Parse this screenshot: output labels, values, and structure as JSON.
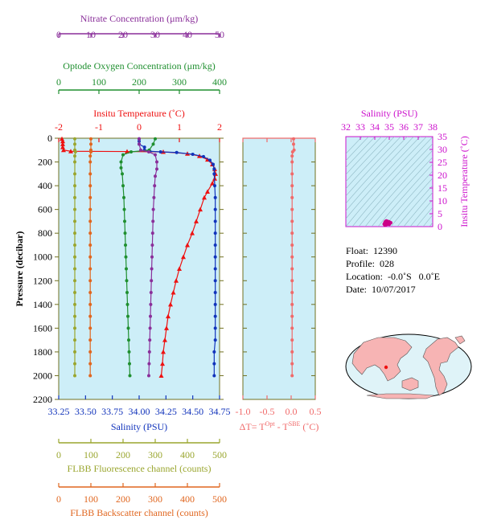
{
  "colors": {
    "plot_bg": "#cdeef8",
    "temperature": "#ee1111",
    "salinity": "#1133bb",
    "oxygen": "#1f8f2f",
    "nitrate": "#8a2f9a",
    "fluorescence": "#9aa62f",
    "backscatter": "#e0661f",
    "delta_t": "#f06a6a",
    "ts_axis": "#cc11cc",
    "land": "#f7b4b4",
    "ocean": "#dff3f8",
    "frame": "#707020"
  },
  "float_info": {
    "float_label": "Float:",
    "float_value": "12390",
    "profile_label": "Profile:",
    "profile_value": "028",
    "location_label": "Location:",
    "location_value": "-0.0˚S   0.0˚E",
    "date_label": "Date:",
    "date_value": "10/07/2017"
  },
  "chart_data": [
    {
      "type": "line",
      "panel": "main-profile",
      "ylabel": "Pressure (decibar)",
      "ylim": [
        2200,
        0
      ],
      "yticks": [
        0,
        200,
        400,
        600,
        800,
        1000,
        1200,
        1400,
        1600,
        1800,
        2000,
        2200
      ],
      "axes": [
        {
          "key": "nitrate",
          "label": "Nitrate Concentration (μm/kg)",
          "range": [
            0,
            50
          ],
          "ticks": [
            0,
            10,
            20,
            30,
            40,
            50
          ],
          "position": "top-1"
        },
        {
          "key": "oxygen",
          "label": "Optode Oxygen Concentration (μm/kg)",
          "range": [
            0,
            400
          ],
          "ticks": [
            0,
            100,
            200,
            300,
            400
          ],
          "position": "top-2"
        },
        {
          "key": "temperature",
          "label": "Insitu Temperature (˚C)",
          "range": [
            -2,
            2
          ],
          "ticks": [
            -2,
            -1,
            0,
            1,
            2
          ],
          "position": "top-3"
        },
        {
          "key": "salinity",
          "label": "Salinity (PSU)",
          "range": [
            33.25,
            34.75
          ],
          "ticks": [
            33.25,
            33.5,
            33.75,
            34.0,
            34.25,
            34.5,
            34.75
          ],
          "tick_labels": [
            "33.25",
            "33.50",
            "33.75",
            "34.00",
            "34.25",
            "34.50",
            "34.75"
          ],
          "position": "bottom-1"
        },
        {
          "key": "fluorescence",
          "label": "FLBB Fluorescence channel (counts)",
          "range": [
            0,
            500
          ],
          "ticks": [
            0,
            100,
            200,
            300,
            400,
            500
          ],
          "position": "bottom-2"
        },
        {
          "key": "backscatter",
          "label": "FLBB Backscatter channel (counts)",
          "range": [
            0,
            500
          ],
          "ticks": [
            0,
            100,
            200,
            300,
            400,
            500
          ],
          "position": "bottom-3"
        }
      ],
      "series": [
        {
          "name": "Insitu Temperature",
          "axis": "temperature",
          "marker": "triangle",
          "points": [
            [
              -1.92,
              5
            ],
            [
              -1.9,
              25
            ],
            [
              -1.9,
              50
            ],
            [
              -1.9,
              75
            ],
            [
              -1.88,
              100
            ],
            [
              -1.7,
              110
            ],
            [
              -0.3,
              112
            ],
            [
              0.6,
              115
            ],
            [
              1.2,
              130
            ],
            [
              1.5,
              150
            ],
            [
              1.7,
              180
            ],
            [
              1.82,
              220
            ],
            [
              1.88,
              260
            ],
            [
              1.9,
              300
            ],
            [
              1.88,
              340
            ],
            [
              1.82,
              380
            ],
            [
              1.7,
              450
            ],
            [
              1.62,
              500
            ],
            [
              1.52,
              600
            ],
            [
              1.42,
              700
            ],
            [
              1.32,
              800
            ],
            [
              1.2,
              900
            ],
            [
              1.1,
              1000
            ],
            [
              1.0,
              1100
            ],
            [
              0.92,
              1200
            ],
            [
              0.85,
              1300
            ],
            [
              0.78,
              1400
            ],
            [
              0.72,
              1500
            ],
            [
              0.68,
              1600
            ],
            [
              0.64,
              1700
            ],
            [
              0.6,
              1800
            ],
            [
              0.58,
              1900
            ],
            [
              0.55,
              2000
            ]
          ]
        },
        {
          "name": "Salinity",
          "axis": "salinity",
          "marker": "circle",
          "points": [
            [
              34.0,
              5
            ],
            [
              34.0,
              25
            ],
            [
              34.0,
              50
            ],
            [
              34.05,
              75
            ],
            [
              34.05,
              100
            ],
            [
              34.1,
              110
            ],
            [
              34.2,
              115
            ],
            [
              34.35,
              120
            ],
            [
              34.5,
              135
            ],
            [
              34.6,
              155
            ],
            [
              34.66,
              185
            ],
            [
              34.69,
              220
            ],
            [
              34.7,
              260
            ],
            [
              34.7,
              300
            ],
            [
              34.705,
              400
            ],
            [
              34.71,
              500
            ],
            [
              34.71,
              600
            ],
            [
              34.71,
              700
            ],
            [
              34.71,
              800
            ],
            [
              34.71,
              900
            ],
            [
              34.71,
              1000
            ],
            [
              34.71,
              1100
            ],
            [
              34.71,
              1200
            ],
            [
              34.71,
              1300
            ],
            [
              34.71,
              1400
            ],
            [
              34.71,
              1500
            ],
            [
              34.71,
              1600
            ],
            [
              34.71,
              1700
            ],
            [
              34.7,
              1800
            ],
            [
              34.7,
              1900
            ],
            [
              34.7,
              2000
            ]
          ]
        },
        {
          "name": "Optode Oxygen",
          "axis": "oxygen",
          "marker": "circle",
          "points": [
            [
              240,
              5
            ],
            [
              235,
              50
            ],
            [
              225,
              100
            ],
            [
              180,
              115
            ],
            [
              160,
              140
            ],
            [
              155,
              200
            ],
            [
              155,
              250
            ],
            [
              158,
              300
            ],
            [
              160,
              400
            ],
            [
              162,
              500
            ],
            [
              163,
              600
            ],
            [
              164,
              700
            ],
            [
              165,
              800
            ],
            [
              166,
              900
            ],
            [
              167,
              1000
            ],
            [
              168,
              1100
            ],
            [
              169,
              1200
            ],
            [
              170,
              1300
            ],
            [
              171,
              1400
            ],
            [
              172,
              1500
            ],
            [
              173,
              1600
            ],
            [
              174,
              1700
            ],
            [
              175,
              1800
            ],
            [
              176,
              1900
            ],
            [
              177,
              2000
            ]
          ]
        },
        {
          "name": "Nitrate",
          "axis": "nitrate",
          "marker": "circle",
          "points": [
            [
              25,
              5
            ],
            [
              25,
              50
            ],
            [
              25.5,
              100
            ],
            [
              28,
              115
            ],
            [
              30,
              140
            ],
            [
              30.5,
              200
            ],
            [
              30.5,
              260
            ],
            [
              30,
              320
            ],
            [
              29.8,
              400
            ],
            [
              29.6,
              500
            ],
            [
              29.4,
              600
            ],
            [
              29.3,
              700
            ],
            [
              29.2,
              800
            ],
            [
              29.1,
              900
            ],
            [
              29.0,
              1000
            ],
            [
              28.9,
              1100
            ],
            [
              28.8,
              1200
            ],
            [
              28.7,
              1300
            ],
            [
              28.6,
              1400
            ],
            [
              28.5,
              1500
            ],
            [
              28.4,
              1600
            ],
            [
              28.3,
              1700
            ],
            [
              28.2,
              1800
            ],
            [
              28.1,
              1900
            ],
            [
              28.0,
              2000
            ]
          ]
        },
        {
          "name": "FLBB Fluorescence",
          "axis": "fluorescence",
          "marker": "circle",
          "points": [
            [
              50,
              5
            ],
            [
              50,
              50
            ],
            [
              50,
              100
            ],
            [
              52,
              115
            ],
            [
              50,
              150
            ],
            [
              50,
              200
            ],
            [
              50,
              300
            ],
            [
              50,
              400
            ],
            [
              50,
              500
            ],
            [
              50,
              600
            ],
            [
              50,
              700
            ],
            [
              50,
              800
            ],
            [
              50,
              900
            ],
            [
              50,
              1000
            ],
            [
              50,
              1100
            ],
            [
              50,
              1200
            ],
            [
              50,
              1300
            ],
            [
              50,
              1400
            ],
            [
              50,
              1500
            ],
            [
              50,
              1600
            ],
            [
              50,
              1700
            ],
            [
              50,
              1800
            ],
            [
              50,
              1900
            ],
            [
              50,
              2000
            ]
          ]
        },
        {
          "name": "FLBB Backscatter",
          "axis": "backscatter",
          "marker": "circle",
          "points": [
            [
              100,
              5
            ],
            [
              100,
              50
            ],
            [
              100,
              100
            ],
            [
              100,
              115
            ],
            [
              98,
              150
            ],
            [
              98,
              200
            ],
            [
              98,
              300
            ],
            [
              98,
              400
            ],
            [
              98,
              500
            ],
            [
              98,
              600
            ],
            [
              98,
              700
            ],
            [
              98,
              800
            ],
            [
              98,
              900
            ],
            [
              98,
              1000
            ],
            [
              98,
              1100
            ],
            [
              98,
              1200
            ],
            [
              98,
              1300
            ],
            [
              98,
              1400
            ],
            [
              98,
              1500
            ],
            [
              98,
              1600
            ],
            [
              98,
              1700
            ],
            [
              98,
              1800
            ],
            [
              98,
              1900
            ],
            [
              98,
              2000
            ]
          ]
        }
      ]
    },
    {
      "type": "line",
      "panel": "delta-t",
      "xlabel": "ΔT= T",
      "xlabel_sup1": "Opt",
      "xlabel_mid": " - T",
      "xlabel_sup2": "SBE",
      "xlabel_end": " (˚C)",
      "xlim": [
        -1.0,
        0.5
      ],
      "xticks": [
        -1.0,
        -0.5,
        0.0,
        0.5
      ],
      "xtick_labels": [
        "-1.0",
        "-0.5",
        "0.0",
        "0.5"
      ],
      "ylim": [
        2200,
        0
      ],
      "series": [
        {
          "name": "Delta T",
          "marker": "circle",
          "points": [
            [
              0.05,
              5
            ],
            [
              0.05,
              50
            ],
            [
              0.06,
              100
            ],
            [
              0.03,
              115
            ],
            [
              0.02,
              150
            ],
            [
              0.02,
              200
            ],
            [
              0.02,
              300
            ],
            [
              0.02,
              400
            ],
            [
              0.02,
              500
            ],
            [
              0.02,
              600
            ],
            [
              0.02,
              700
            ],
            [
              0.02,
              800
            ],
            [
              0.02,
              900
            ],
            [
              0.02,
              1000
            ],
            [
              0.02,
              1100
            ],
            [
              0.02,
              1200
            ],
            [
              0.02,
              1300
            ],
            [
              0.02,
              1400
            ],
            [
              0.02,
              1500
            ],
            [
              0.02,
              1600
            ],
            [
              0.02,
              1700
            ],
            [
              0.02,
              1800
            ],
            [
              0.02,
              1900
            ],
            [
              0.02,
              2000
            ]
          ]
        }
      ]
    },
    {
      "type": "scatter",
      "panel": "ts-diagram",
      "title": "Salinity (PSU)",
      "xlim": [
        32,
        38
      ],
      "xticks": [
        32,
        33,
        34,
        35,
        36,
        37,
        38
      ],
      "ylabel": "Insitu Temperature (˚C)",
      "ylim": [
        0,
        35
      ],
      "yticks": [
        0,
        5,
        10,
        15,
        20,
        25,
        30,
        35
      ],
      "points": [
        [
          34.7,
          1.2
        ],
        [
          34.7,
          1.5
        ],
        [
          34.72,
          1.8
        ],
        [
          34.75,
          2.0
        ],
        [
          34.8,
          2.2
        ],
        [
          34.9,
          2.0
        ],
        [
          35.0,
          1.8
        ],
        [
          35.1,
          1.5
        ],
        [
          34.9,
          1.0
        ],
        [
          34.8,
          0.8
        ],
        [
          34.65,
          1.0
        ],
        [
          34.7,
          0.6
        ],
        [
          35.0,
          0.9
        ]
      ]
    }
  ]
}
